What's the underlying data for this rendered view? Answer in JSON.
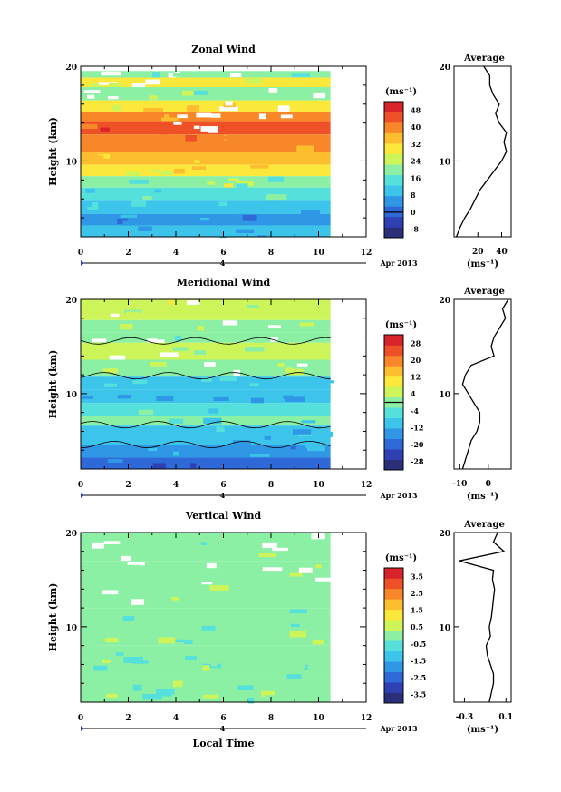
{
  "chart_data": [
    {
      "type": "heatmap",
      "title": "Zonal Wind",
      "xlabel": "",
      "ylabel": "Height (km)",
      "xlim": [
        0,
        12
      ],
      "ylim": [
        2,
        20
      ],
      "x_ticks": [
        "0",
        "2",
        "4",
        "6",
        "8",
        "10",
        "12"
      ],
      "y_ticks": [
        "10",
        "20"
      ],
      "date_axis": {
        "day_label": "4",
        "month_year": "Apr 2013"
      },
      "data_end_hour": 10.5,
      "colorbar": {
        "unit": "(ms⁻¹)",
        "ticks": [
          "-8",
          "0",
          "8",
          "16",
          "24",
          "32",
          "40",
          "48"
        ],
        "range": [
          -12,
          52
        ],
        "zero_line": 0
      },
      "bands": [
        {
          "top": 19.5,
          "value": 20
        },
        {
          "top": 18.8,
          "value": 28
        },
        {
          "top": 17.8,
          "value": 22
        },
        {
          "top": 16.4,
          "value": 30
        },
        {
          "top": 15.2,
          "value": 38
        },
        {
          "top": 14.2,
          "value": 44
        },
        {
          "top": 12.8,
          "value": 40
        },
        {
          "top": 11.0,
          "value": 34
        },
        {
          "top": 9.6,
          "value": 28
        },
        {
          "top": 8.4,
          "value": 22
        },
        {
          "top": 7.2,
          "value": 16
        },
        {
          "top": 5.8,
          "value": 10
        },
        {
          "top": 4.4,
          "value": 6
        },
        {
          "top": 3.2,
          "value": 9
        }
      ],
      "average_profile": {
        "title": "Average",
        "xlabel": "(ms⁻¹)",
        "x_ticks": [
          "20",
          "40"
        ],
        "xlim": [
          0,
          48
        ],
        "x": [
          2,
          5,
          9,
          14,
          18,
          22,
          28,
          34,
          40,
          44,
          42,
          44,
          38,
          35,
          38,
          33,
          30,
          30,
          25
        ],
        "y": [
          2,
          3,
          4,
          5,
          6,
          7,
          8,
          9,
          10,
          11,
          12,
          13,
          14,
          15,
          16,
          17,
          18,
          19,
          20
        ]
      }
    },
    {
      "type": "heatmap",
      "title": "Meridional Wind",
      "xlabel": "",
      "ylabel": "Height (km)",
      "xlim": [
        0,
        12
      ],
      "ylim": [
        2,
        20
      ],
      "x_ticks": [
        "0",
        "2",
        "4",
        "6",
        "8",
        "10",
        "12"
      ],
      "y_ticks": [
        "10",
        "20"
      ],
      "date_axis": {
        "day_label": "4",
        "month_year": "Apr 2013"
      },
      "data_end_hour": 10.5,
      "colorbar": {
        "unit": "(ms⁻¹)",
        "ticks": [
          "-28",
          "-20",
          "-12",
          "-4",
          "4",
          "12",
          "20",
          "28"
        ],
        "range": [
          -32,
          32
        ],
        "zero_line": 0
      },
      "bands": [
        {
          "top": 20.0,
          "value": 6
        },
        {
          "top": 17.8,
          "value": 2
        },
        {
          "top": 16.5,
          "value": -2
        },
        {
          "top": 15.4,
          "value": 3
        },
        {
          "top": 13.6,
          "value": 1
        },
        {
          "top": 11.8,
          "value": -8
        },
        {
          "top": 10.4,
          "value": -12
        },
        {
          "top": 9.0,
          "value": -6
        },
        {
          "top": 7.6,
          "value": -2
        },
        {
          "top": 6.6,
          "value": -10
        },
        {
          "top": 4.6,
          "value": -14
        },
        {
          "top": 3.2,
          "value": -20
        }
      ],
      "average_profile": {
        "title": "Average",
        "xlabel": "(ms⁻¹)",
        "x_ticks": [
          "-10",
          "0"
        ],
        "xlim": [
          -12,
          8
        ],
        "x": [
          -9,
          -8,
          -7,
          -6,
          -4,
          -3,
          -3,
          -5,
          -7,
          -9,
          -8,
          -6,
          2,
          1,
          2,
          4,
          6,
          5,
          7
        ],
        "y": [
          2,
          3,
          4,
          5,
          6,
          7,
          8,
          9,
          10,
          11,
          12,
          13,
          14,
          15,
          16,
          17,
          18,
          19,
          20
        ]
      }
    },
    {
      "type": "heatmap",
      "title": "Vertical Wind",
      "xlabel": "Local Time",
      "ylabel": "Height (km)",
      "xlim": [
        0,
        12
      ],
      "ylim": [
        2,
        20
      ],
      "x_ticks": [
        "0",
        "2",
        "4",
        "6",
        "8",
        "10",
        "12"
      ],
      "y_ticks": [
        "10",
        "20"
      ],
      "date_axis": {
        "day_label": "4",
        "month_year": "Apr 2013"
      },
      "data_end_hour": 10.5,
      "colorbar": {
        "unit": "(ms⁻¹)",
        "ticks": [
          "-3.5",
          "-2.5",
          "-1.5",
          "-0.5",
          "0.5",
          "1.5",
          "2.5",
          "3.5"
        ],
        "range": [
          -4,
          4
        ],
        "zero_line": null
      },
      "bands": [
        {
          "top": 20.0,
          "value": 0.3
        },
        {
          "top": 17.0,
          "value": 0.0
        },
        {
          "top": 12.0,
          "value": -0.1
        },
        {
          "top": 8.0,
          "value": -0.2
        },
        {
          "top": 4.5,
          "value": 0.1
        }
      ],
      "average_profile": {
        "title": "Average",
        "xlabel": "(ms⁻¹)",
        "x_ticks": [
          "-0.3",
          "0.1"
        ],
        "xlim": [
          -0.4,
          0.15
        ],
        "x": [
          -0.06,
          -0.04,
          -0.02,
          -0.02,
          -0.05,
          -0.08,
          -0.09,
          -0.05,
          -0.06,
          -0.04,
          -0.03,
          -0.02,
          -0.01,
          -0.03,
          -0.02,
          -0.35,
          0.08,
          -0.02,
          0.02
        ],
        "y": [
          2,
          3,
          4,
          5,
          6,
          7,
          8,
          9,
          10,
          11,
          12,
          13,
          14,
          15,
          16,
          17,
          18,
          19,
          20
        ]
      }
    }
  ]
}
